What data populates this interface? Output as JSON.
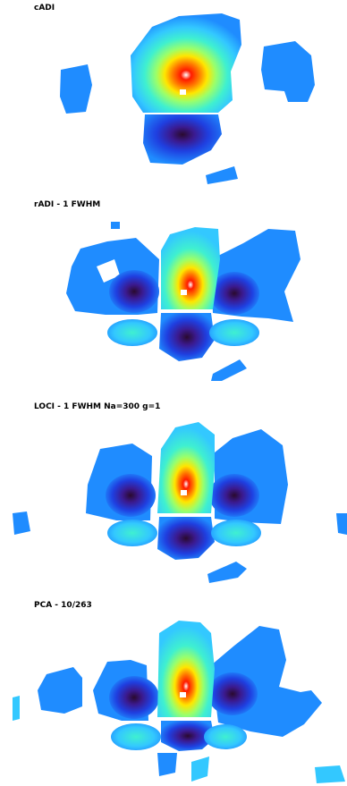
{
  "panels": [
    {
      "id": "cadi",
      "title": "cADI"
    },
    {
      "id": "radi",
      "title": "rADI - 1 FWHM"
    },
    {
      "id": "loci",
      "title": "LOCI - 1 FWHM Na=300 g=1"
    },
    {
      "id": "pca",
      "title": "PCA - 10/263"
    }
  ],
  "colormap": {
    "name": "jet-like",
    "background": "#ffffff",
    "stops": [
      "#2a0a2e",
      "#3b1a8f",
      "#1f3fe0",
      "#1f8cff",
      "#33c8ff",
      "#3ff0d0",
      "#9bff6a",
      "#ffe600",
      "#ff7a00",
      "#ff1a00",
      "#ffffff"
    ]
  }
}
